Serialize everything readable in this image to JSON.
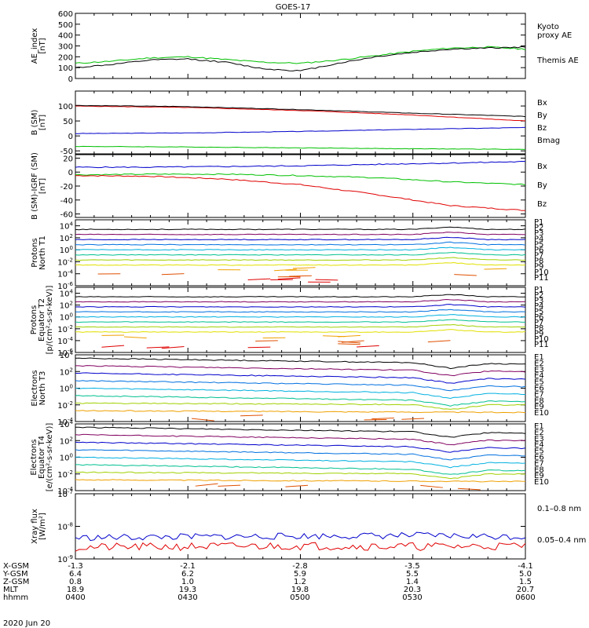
{
  "figure": {
    "title": "GOES-17",
    "date": "2020 Jun 20"
  },
  "colors": {
    "black": "#000000",
    "red": "#e00000",
    "green": "#00c000",
    "blue": "#0000cc"
  },
  "panels": [
    {
      "id": "ae",
      "ylabel": [
        "AE_index",
        "[nT]"
      ],
      "type": "linear",
      "ylim": [
        0,
        600
      ],
      "ticks": [
        "600",
        "500",
        "400",
        "300",
        "200",
        "100",
        "0"
      ],
      "tickvals": [
        600,
        500,
        400,
        300,
        200,
        100,
        0
      ],
      "legend": [
        {
          "label": "Kyoto",
          "color": "#00c000"
        },
        {
          "label": "proxy AE",
          "color": "#00c000"
        },
        {
          "label": "Themis AE",
          "color": "#000000"
        }
      ]
    },
    {
      "id": "bsm",
      "ylabel": [
        "B (SM)",
        "[nT]"
      ],
      "type": "linear",
      "ylim": [
        -60,
        150
      ],
      "ticks": [
        "100",
        "50",
        "0",
        "-50"
      ],
      "tickvals": [
        100,
        50,
        0,
        -50
      ],
      "legend": [
        {
          "label": "Bx",
          "color": "#0000cc"
        },
        {
          "label": "By",
          "color": "#00c000"
        },
        {
          "label": "Bz",
          "color": "#e00000"
        },
        {
          "label": "Bmag",
          "color": "#000000"
        }
      ]
    },
    {
      "id": "bigrf",
      "ylabel": [
        "B (SM)-IGRF (SM)",
        "[nT]"
      ],
      "type": "linear",
      "ylim": [
        -65,
        25
      ],
      "ticks": [
        "20",
        "0",
        "-20",
        "-40",
        "-60"
      ],
      "tickvals": [
        20,
        0,
        -20,
        -40,
        -60
      ],
      "legend": [
        {
          "label": "Bx",
          "color": "#0000cc"
        },
        {
          "label": "By",
          "color": "#00c000"
        },
        {
          "label": "Bz",
          "color": "#e00000"
        }
      ]
    },
    {
      "id": "pnorth",
      "ylabel": [
        "Protons",
        "North T1"
      ],
      "type": "log",
      "ylim": [
        -6,
        5
      ],
      "ticks": [
        "10^4",
        "10^2",
        "10^0",
        "10^-2",
        "10^-4",
        "10^-6"
      ],
      "tickvals": [
        4,
        2,
        0,
        -2,
        -4,
        -6
      ],
      "legend": [
        {
          "label": "P1",
          "color": "#000000"
        },
        {
          "label": "P2",
          "color": "#800060"
        },
        {
          "label": "P3",
          "color": "#0000cc"
        },
        {
          "label": "P4",
          "color": "#0070e0"
        },
        {
          "label": "P5",
          "color": "#00b0e0"
        },
        {
          "label": "P6",
          "color": "#00c090"
        },
        {
          "label": "P7",
          "color": "#a0d000"
        },
        {
          "label": "P8",
          "color": "#e0e000"
        },
        {
          "label": "P9",
          "color": "#f0a000"
        },
        {
          "label": "P10",
          "color": "#e05000"
        },
        {
          "label": "P11",
          "color": "#e00000"
        }
      ]
    },
    {
      "id": "pequator",
      "ylabel": [
        "Protons",
        "Equator T2",
        "[p/(cm²-s-sr-keV)]"
      ],
      "type": "log",
      "ylim": [
        -6,
        5
      ],
      "ticks": [
        "10^4",
        "10^2",
        "10^0",
        "10^-2",
        "10^-4",
        "10^-6"
      ],
      "tickvals": [
        4,
        2,
        0,
        -2,
        -4,
        -6
      ],
      "legend": [
        {
          "label": "P1",
          "color": "#000000"
        },
        {
          "label": "P2",
          "color": "#800060"
        },
        {
          "label": "P3",
          "color": "#0000cc"
        },
        {
          "label": "P4",
          "color": "#0070e0"
        },
        {
          "label": "P5",
          "color": "#00b0e0"
        },
        {
          "label": "P6",
          "color": "#00c090"
        },
        {
          "label": "P7",
          "color": "#a0d000"
        },
        {
          "label": "P8",
          "color": "#e0e000"
        },
        {
          "label": "P9",
          "color": "#f0a000"
        },
        {
          "label": "P10",
          "color": "#e05000"
        },
        {
          "label": "P11",
          "color": "#e00000"
        }
      ]
    },
    {
      "id": "enorth",
      "ylabel": [
        "Electrons",
        "North T3"
      ],
      "type": "log",
      "ylim": [
        -4,
        4
      ],
      "ticks": [
        "10^4",
        "10^2",
        "10^0",
        "10^-2",
        "10^-4"
      ],
      "tickvals": [
        4,
        2,
        0,
        -2,
        -4
      ],
      "legend": [
        {
          "label": "E1",
          "color": "#000000"
        },
        {
          "label": "E2",
          "color": "#800060"
        },
        {
          "label": "E3",
          "color": "#0000cc"
        },
        {
          "label": "E4",
          "color": "#0070e0"
        },
        {
          "label": "E5",
          "color": "#00b0e0"
        },
        {
          "label": "E6",
          "color": "#00c090"
        },
        {
          "label": "E7",
          "color": "#a0d000"
        },
        {
          "label": "E8",
          "color": "#f0a000"
        },
        {
          "label": "E9",
          "color": "#e05000"
        },
        {
          "label": "E10",
          "color": "#e00000"
        }
      ]
    },
    {
      "id": "eequator",
      "ylabel": [
        "Electrons",
        "Equator T4",
        "[e/(cm²-s-sr-keV)]"
      ],
      "type": "log",
      "ylim": [
        -4,
        4
      ],
      "ticks": [
        "10^4",
        "10^2",
        "10^0",
        "10^-2",
        "10^-4"
      ],
      "tickvals": [
        4,
        2,
        0,
        -2,
        -4
      ],
      "legend": [
        {
          "label": "E1",
          "color": "#000000"
        },
        {
          "label": "E2",
          "color": "#800060"
        },
        {
          "label": "E3",
          "color": "#0000cc"
        },
        {
          "label": "E4",
          "color": "#0070e0"
        },
        {
          "label": "E5",
          "color": "#00b0e0"
        },
        {
          "label": "E6",
          "color": "#00c090"
        },
        {
          "label": "E7",
          "color": "#a0d000"
        },
        {
          "label": "E8",
          "color": "#f0a000"
        },
        {
          "label": "E9",
          "color": "#e05000"
        },
        {
          "label": "E10",
          "color": "#e00000"
        }
      ]
    },
    {
      "id": "xray",
      "ylabel": [
        "Xray flux",
        "[W/m²]"
      ],
      "type": "log",
      "ylim": [
        -9,
        -7
      ],
      "ticks": [
        "10^-7",
        "10^-8",
        "10^-9"
      ],
      "tickvals": [
        -7,
        -8,
        -9
      ],
      "legend": [
        {
          "label": "0.1–0.8 nm",
          "color": "#e00000"
        },
        {
          "label": "0.05–0.4 nm",
          "color": "#0000cc"
        }
      ]
    }
  ],
  "orbit": {
    "rows": [
      {
        "label": "X-GSM",
        "values": [
          "-1.3",
          "-2.1",
          "-2.8",
          "-3.5",
          "-4.1"
        ]
      },
      {
        "label": "Y-GSM",
        "values": [
          "6.4",
          "6.2",
          "5.9",
          "5.5",
          "5.0"
        ]
      },
      {
        "label": "Z-GSM",
        "values": [
          "0.8",
          "1.0",
          "1.2",
          "1.4",
          "1.5"
        ]
      },
      {
        "label": "MLT",
        "values": [
          "18.9",
          "19.3",
          "19.8",
          "20.3",
          "20.7"
        ]
      },
      {
        "label": "hhmm",
        "values": [
          "0400",
          "0430",
          "0500",
          "0530",
          "0600"
        ]
      }
    ]
  },
  "chart_data": [
    {
      "type": "line",
      "title": "GOES-17",
      "ylabel": "AE_index [nT]",
      "x": [
        0,
        10,
        20,
        30,
        40,
        50,
        60,
        70,
        80,
        90,
        100,
        110,
        120
      ],
      "series": [
        {
          "name": "Kyoto proxy AE",
          "values": [
            140,
            160,
            190,
            200,
            175,
            150,
            140,
            170,
            210,
            250,
            280,
            290,
            270
          ]
        },
        {
          "name": "Themis AE",
          "values": [
            100,
            130,
            170,
            180,
            150,
            90,
            70,
            140,
            200,
            240,
            270,
            280,
            290
          ]
        }
      ],
      "ylim": [
        0,
        600
      ]
    },
    {
      "type": "line",
      "ylabel": "B (SM) [nT]",
      "x": [
        0,
        30,
        60,
        90,
        120
      ],
      "series": [
        {
          "name": "Bx",
          "values": [
            8,
            10,
            15,
            22,
            28
          ]
        },
        {
          "name": "By",
          "values": [
            -35,
            -37,
            -40,
            -43,
            -45
          ]
        },
        {
          "name": "Bz",
          "values": [
            100,
            95,
            85,
            70,
            50
          ]
        },
        {
          "name": "Bmag",
          "values": [
            102,
            98,
            88,
            76,
            65
          ]
        }
      ],
      "ylim": [
        -60,
        150
      ]
    },
    {
      "type": "line",
      "ylabel": "B (SM)-IGRF (SM) [nT]",
      "x": [
        0,
        20,
        40,
        60,
        80,
        100,
        120
      ],
      "series": [
        {
          "name": "Bx",
          "values": [
            7,
            7,
            8,
            9,
            11,
            13,
            15
          ]
        },
        {
          "name": "By",
          "values": [
            -4,
            -3,
            -3,
            -5,
            -8,
            -14,
            -18
          ]
        },
        {
          "name": "Bz",
          "values": [
            -5,
            -6,
            -10,
            -18,
            -32,
            -48,
            -55
          ]
        }
      ],
      "ylim": [
        -65,
        25
      ]
    },
    {
      "type": "line",
      "ylabel": "Xray flux [W/m²]",
      "x": [
        0,
        30,
        60,
        90,
        120
      ],
      "series": [
        {
          "name": "0.1–0.8 nm",
          "values": [
            -8.6,
            -8.6,
            -8.6,
            -8.6,
            -8.6
          ]
        },
        {
          "name": "0.05–0.4 nm",
          "values": [
            -8.3,
            -8.3,
            -8.3,
            -8.3,
            -8.3
          ]
        }
      ],
      "ylim": [
        -9,
        -7
      ]
    }
  ]
}
